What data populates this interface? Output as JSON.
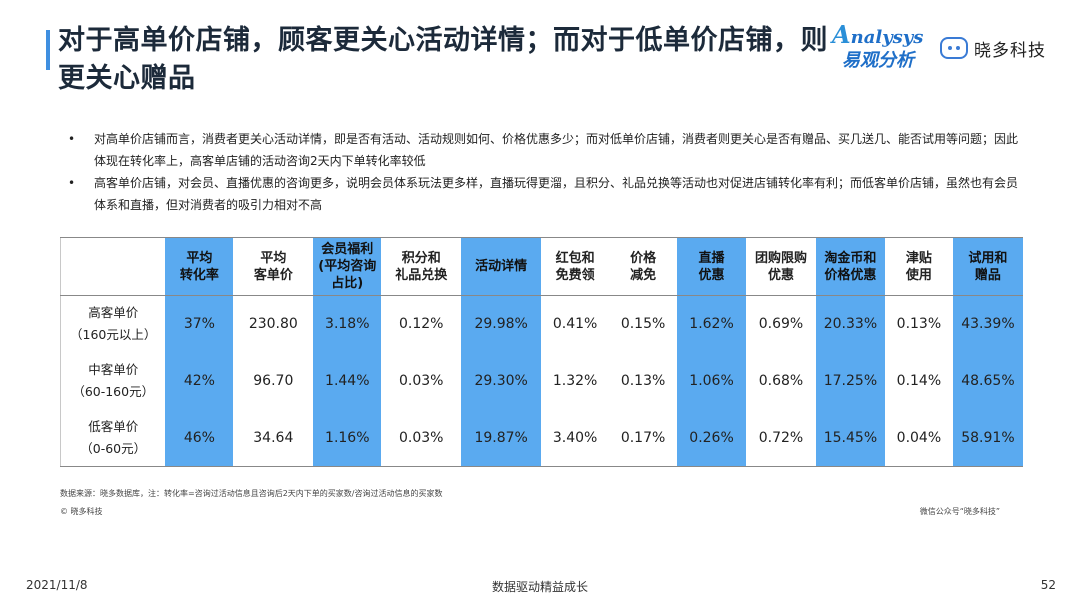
{
  "title": "对于高单价店铺，顾客更关心活动详情；而对于低单价店铺，则更关心赠品",
  "logos": {
    "analysys_en": "nalysys",
    "analysys_a": "A",
    "analysys_cn": "易观分析",
    "xiaoduo": "晓多科技"
  },
  "bullets": [
    "对高单价店铺而言，消费者更关心活动详情，即是否有活动、活动规则如何、价格优惠多少；而对低单价店铺，消费者则更关心是否有赠品、买几送几、能否试用等问题；因此体现在转化率上，高客单店铺的活动咨询2天内下单转化率较低",
    "高客单价店铺，对会员、直播优惠的咨询更多，说明会员体系玩法更多样，直播玩得更溜，且积分、礼品兑换等活动也对促进店铺转化率有利；而低客单价店铺，虽然也有会员体系和直播，但对消费者的吸引力相对不高"
  ],
  "table": {
    "headers": [
      {
        "label": "平均\n转化率",
        "highlight": true
      },
      {
        "label": "平均\n客单价",
        "highlight": false
      },
      {
        "label": "会员福利\n(平均咨询\n占比)",
        "highlight": true
      },
      {
        "label": "积分和\n礼品兑换",
        "highlight": false
      },
      {
        "label": "活动详情",
        "highlight": true
      },
      {
        "label": "红包和\n免费领",
        "highlight": false
      },
      {
        "label": "价格\n减免",
        "highlight": false
      },
      {
        "label": "直播\n优惠",
        "highlight": true
      },
      {
        "label": "团购限购\n优惠",
        "highlight": false
      },
      {
        "label": "淘金币和\n价格优惠",
        "highlight": true
      },
      {
        "label": "津贴\n使用",
        "highlight": false
      },
      {
        "label": "试用和\n赠品",
        "highlight": true
      }
    ],
    "rows": [
      {
        "label_line1": "高客单价",
        "label_line2": "（160元以上）",
        "values": [
          "37%",
          "230.80",
          "3.18%",
          "0.12%",
          "29.98%",
          "0.41%",
          "0.15%",
          "1.62%",
          "0.69%",
          "20.33%",
          "0.13%",
          "43.39%"
        ]
      },
      {
        "label_line1": "中客单价",
        "label_line2": "（60-160元）",
        "values": [
          "42%",
          "96.70",
          "1.44%",
          "0.03%",
          "29.30%",
          "1.32%",
          "0.13%",
          "1.06%",
          "0.68%",
          "17.25%",
          "0.14%",
          "48.65%"
        ]
      },
      {
        "label_line1": "低客单价",
        "label_line2": "（0-60元）",
        "values": [
          "46%",
          "34.64",
          "1.16%",
          "0.03%",
          "19.87%",
          "3.40%",
          "0.17%",
          "0.26%",
          "0.72%",
          "15.45%",
          "0.04%",
          "58.91%"
        ]
      }
    ]
  },
  "source": "数据来源：晓多数据库，注：转化率=咨询过活动信息且咨询后2天内下单的买家数/咨询过活动信息的买家数",
  "copyright": "© 晓多科技",
  "wechat": "微信公众号“晓多科技”",
  "footer": {
    "date": "2021/11/8",
    "center": "数据驱动精益成长",
    "page": "52"
  },
  "colors": {
    "highlight": "#5aaaf0",
    "title_bar": "#3f8fe0",
    "brand_blue": "#1f6fc8"
  }
}
